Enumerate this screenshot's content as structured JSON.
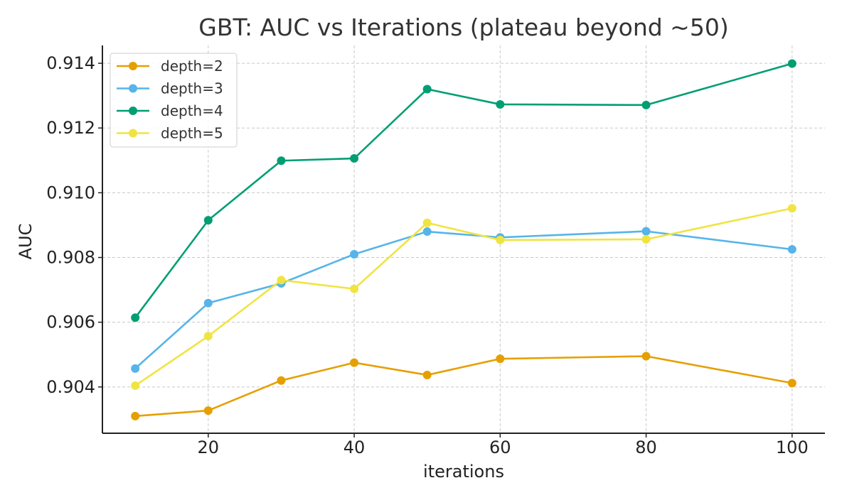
{
  "chart_data": {
    "type": "line",
    "title": "GBT: AUC vs Iterations (plateau beyond ~50)",
    "xlabel": "iterations",
    "ylabel": "AUC",
    "x": [
      10,
      20,
      30,
      40,
      50,
      60,
      80,
      100
    ],
    "xlim": [
      5.5,
      104.5
    ],
    "ylim": [
      0.90257,
      0.91455
    ],
    "xticks": [
      20,
      40,
      60,
      80,
      100
    ],
    "yticks": [
      0.904,
      0.906,
      0.908,
      0.91,
      0.912,
      0.914
    ],
    "ytick_labels": [
      "0.904",
      "0.906",
      "0.908",
      "0.910",
      "0.912",
      "0.914"
    ],
    "xtick_labels": [
      "20",
      "40",
      "60",
      "80",
      "100"
    ],
    "grid": true,
    "legend_position": "top-left",
    "series": [
      {
        "name": "depth=2",
        "color": "#E69F00",
        "values": [
          0.9031,
          0.90327,
          0.9042,
          0.90475,
          0.90437,
          0.90487,
          0.90495,
          0.90412
        ]
      },
      {
        "name": "depth=3",
        "color": "#56B4E9",
        "values": [
          0.90457,
          0.90659,
          0.9072,
          0.9081,
          0.9088,
          0.90862,
          0.90881,
          0.90825
        ]
      },
      {
        "name": "depth=4",
        "color": "#009E73",
        "values": [
          0.90614,
          0.90915,
          0.91099,
          0.91106,
          0.9132,
          0.91273,
          0.91271,
          0.91399
        ]
      },
      {
        "name": "depth=5",
        "color": "#F0E442",
        "values": [
          0.90404,
          0.90557,
          0.9073,
          0.90703,
          0.90907,
          0.90854,
          0.90856,
          0.90952
        ]
      }
    ]
  }
}
